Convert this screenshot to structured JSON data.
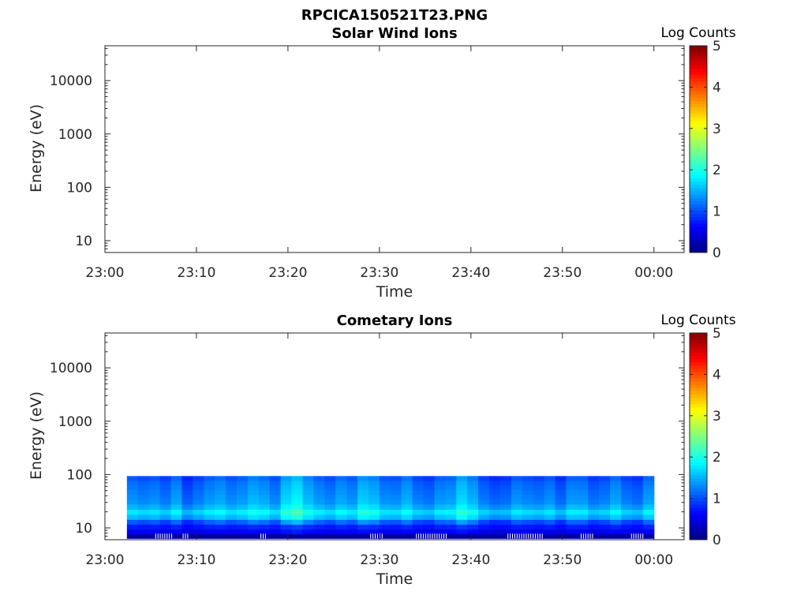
{
  "figure_title": "RPCICA150521T23.PNG",
  "chart_data": [
    {
      "type": "heatmap",
      "title": "Solar Wind Ions",
      "xlabel": "Time",
      "ylabel": "Energy (eV)",
      "x_ticks": [
        "23:00",
        "23:10",
        "23:20",
        "23:30",
        "23:40",
        "23:50",
        "00:00"
      ],
      "y_scale": "log",
      "y_ticks": [
        "10",
        "100",
        "1000",
        "10000"
      ],
      "ylim": [
        6,
        45000
      ],
      "colorbar": {
        "label": "Log Counts",
        "range": [
          0,
          5
        ],
        "ticks": [
          "0",
          "1",
          "2",
          "3",
          "4",
          "5"
        ],
        "colormap": "jet"
      },
      "data": "empty"
    },
    {
      "type": "heatmap",
      "title": "Cometary Ions",
      "xlabel": "Time",
      "ylabel": "Energy (eV)",
      "x_ticks": [
        "23:00",
        "23:10",
        "23:20",
        "23:30",
        "23:40",
        "23:50",
        "00:00"
      ],
      "y_scale": "log",
      "y_ticks": [
        "10",
        "100",
        "1000",
        "10000"
      ],
      "ylim": [
        6,
        45000
      ],
      "colorbar": {
        "label": "Log Counts",
        "range": [
          0,
          5
        ],
        "ticks": [
          "0",
          "1",
          "2",
          "3",
          "4",
          "5"
        ],
        "colormap": "jet"
      },
      "time_start_minutes": 2.4,
      "time_end_minutes": 60,
      "time_bin_minutes": 1.2,
      "energy_levels_eV": [
        7,
        8.5,
        10.5,
        13,
        16,
        20,
        25,
        31,
        38,
        47,
        58,
        70,
        85
      ],
      "band_base_log_counts": [
        0.4,
        0.55,
        0.75,
        1.05,
        1.55,
        1.75,
        1.5,
        1.35,
        1.3,
        1.25,
        1.2,
        1.15,
        1.05
      ],
      "column_modulation": [
        0.02,
        -0.05,
        0.0,
        -0.12,
        0.08,
        -0.25,
        -0.1,
        0.04,
        0.12,
        -0.02,
        0.05,
        0.2,
        0.12,
        -0.04,
        0.35,
        0.5,
        0.22,
        0.05,
        -0.05,
        0.12,
        0.02,
        0.3,
        0.22,
        0.0,
        -0.02,
        0.15,
        -0.08,
        -0.15,
        0.04,
        0.08,
        0.36,
        0.18,
        -0.1,
        -0.22,
        -0.18,
        0.02,
        -0.05,
        -0.1,
        0.0,
        -0.2,
        0.05,
        0.04,
        -0.15,
        -0.08,
        0.1,
        -0.1,
        -0.18,
        0.08,
        0.14,
        -0.05,
        -0.2,
        0.0,
        0.05,
        -0.08,
        -0.25,
        0.06,
        0.0,
        0.0
      ],
      "low_energy_dark_row_log_counts": 0.15,
      "data_gap_minutes": [
        [
          5.5,
          7.5
        ],
        [
          8.5,
          9.2
        ],
        [
          17.0,
          17.6
        ],
        [
          29.0,
          30.5
        ],
        [
          34.0,
          37.5
        ],
        [
          44.0,
          48.0
        ],
        [
          52.0,
          53.5
        ],
        [
          57.5,
          59.0
        ]
      ]
    }
  ]
}
